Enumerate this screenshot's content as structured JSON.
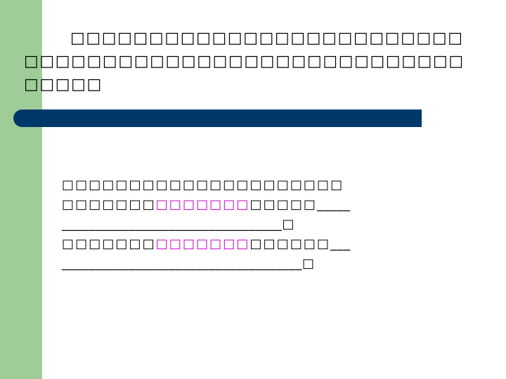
{
  "slide": {
    "strip_color": "#9fcd98",
    "banner_color": "#003869",
    "intro_text": "□□□□□□□□□□□□□□□□□□□□□□□□□□□□□□□□□□□□□□□□□□□□□□□□□□□□□□□□□□",
    "questions": {
      "line1": "□□□□□□□□□□□□□□□□□□□□□",
      "line2_pre": "□□□□□□□",
      "line2_highlight": "□□□□□□□",
      "line2_post": "□□□□□",
      "line2_blank": "_____",
      "line3_blank": "_________________________________",
      "line3_end": "□",
      "line4_pre": "□□□□□□□",
      "line4_highlight": "□□□□□□□",
      "line4_post": "□□□□□□",
      "line4_blank": "___",
      "line5_blank": "____________________________________",
      "line5_end": "□"
    }
  }
}
